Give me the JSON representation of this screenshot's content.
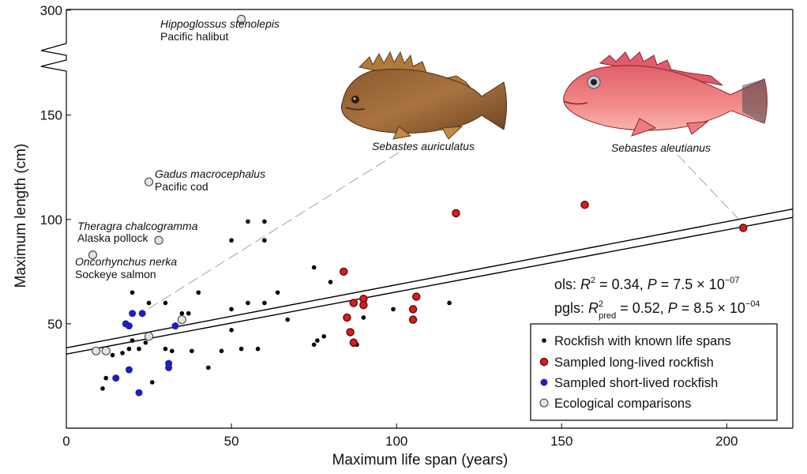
{
  "chart_data": {
    "type": "scatter",
    "xlabel": "Maximum life span (years)",
    "ylabel": "Maximum length (cm)",
    "xlim": [
      0,
      220
    ],
    "x_ticks": [
      0,
      50,
      100,
      150,
      200
    ],
    "y_ticks": [
      50,
      100,
      150,
      300
    ],
    "y_tick_labels": [
      "50",
      "100",
      "150",
      "300"
    ],
    "y_axis_break": true,
    "grid": false,
    "legend_position": "bottom-right",
    "series": [
      {
        "name": "Rockfish with known life spans",
        "color": "#000000",
        "marker": "small-filled",
        "points": [
          [
            11,
            19
          ],
          [
            12,
            24
          ],
          [
            14,
            35
          ],
          [
            17,
            36
          ],
          [
            19,
            38
          ],
          [
            20,
            42
          ],
          [
            20,
            65
          ],
          [
            22,
            38
          ],
          [
            24,
            41
          ],
          [
            25,
            60
          ],
          [
            26,
            22
          ],
          [
            30,
            60
          ],
          [
            30,
            38
          ],
          [
            32,
            37
          ],
          [
            35,
            55
          ],
          [
            37,
            55
          ],
          [
            38,
            37
          ],
          [
            40,
            65
          ],
          [
            43,
            29
          ],
          [
            47,
            37
          ],
          [
            50,
            90
          ],
          [
            50,
            57
          ],
          [
            50,
            47
          ],
          [
            53,
            38
          ],
          [
            55,
            99
          ],
          [
            55,
            60
          ],
          [
            58,
            38
          ],
          [
            60,
            90
          ],
          [
            60,
            99
          ],
          [
            60,
            60
          ],
          [
            64,
            65
          ],
          [
            67,
            52
          ],
          [
            75,
            40
          ],
          [
            75,
            77
          ],
          [
            76,
            42
          ],
          [
            78,
            44
          ],
          [
            80,
            70
          ],
          [
            87,
            40
          ],
          [
            88,
            40
          ],
          [
            90,
            53
          ],
          [
            99,
            57
          ],
          [
            116,
            60
          ]
        ]
      },
      {
        "name": "Sampled long-lived rockfish",
        "color": "#d42020",
        "marker": "ringed-filled",
        "points": [
          [
            84,
            75
          ],
          [
            85,
            53
          ],
          [
            86,
            46
          ],
          [
            87,
            41
          ],
          [
            87,
            60
          ],
          [
            90,
            62
          ],
          [
            90,
            59
          ],
          [
            105,
            57
          ],
          [
            105,
            52
          ],
          [
            106,
            63
          ],
          [
            118,
            103
          ],
          [
            157,
            107
          ],
          [
            205,
            96
          ]
        ]
      },
      {
        "name": "Sampled short-lived rockfish",
        "color": "#1f1fb8",
        "marker": "filled",
        "points": [
          [
            15,
            24
          ],
          [
            18,
            50
          ],
          [
            19,
            28
          ],
          [
            19,
            49
          ],
          [
            20,
            55
          ],
          [
            22,
            17
          ],
          [
            23,
            55
          ],
          [
            31,
            29
          ],
          [
            31,
            31
          ],
          [
            33,
            49
          ]
        ]
      },
      {
        "name": "Ecological comparisons",
        "color": "#e3e3e3",
        "marker": "open-grey",
        "points": [
          [
            9,
            37
          ],
          [
            12,
            37
          ],
          [
            25,
            44
          ],
          [
            35,
            52
          ],
          [
            8,
            83
          ],
          [
            28,
            90
          ],
          [
            25,
            118
          ],
          [
            53,
            287
          ]
        ]
      }
    ],
    "regression_lines": [
      {
        "label": "ols",
        "from": [
          0,
          35.5
        ],
        "to": [
          220,
          101
        ]
      },
      {
        "label": "pgls",
        "from": [
          0,
          38.5
        ],
        "to": [
          220,
          105
        ]
      }
    ],
    "annotations": [
      {
        "scientific": "Hippoglossus stenolepis",
        "common": "Pacific halibut"
      },
      {
        "scientific": "Gadus macrocephalus",
        "common": "Pacific cod"
      },
      {
        "scientific": "Theragra chalcogramma",
        "common": "Alaska pollock"
      },
      {
        "scientific": "Oncorhynchus nerka",
        "common": "Sockeye salmon"
      }
    ],
    "fish_labels": [
      "Sebastes auriculatus",
      "Sebastes aleutianus"
    ],
    "stats": {
      "ols": {
        "prefix": "ols:",
        "r2": "0.34",
        "p_mantissa": "7.5",
        "p_exponent": "−07"
      },
      "pgls": {
        "prefix": "pgls:",
        "r2_subscript": "pred",
        "r2": "0.52",
        "p_mantissa": "8.5",
        "p_exponent": "−04"
      }
    }
  }
}
